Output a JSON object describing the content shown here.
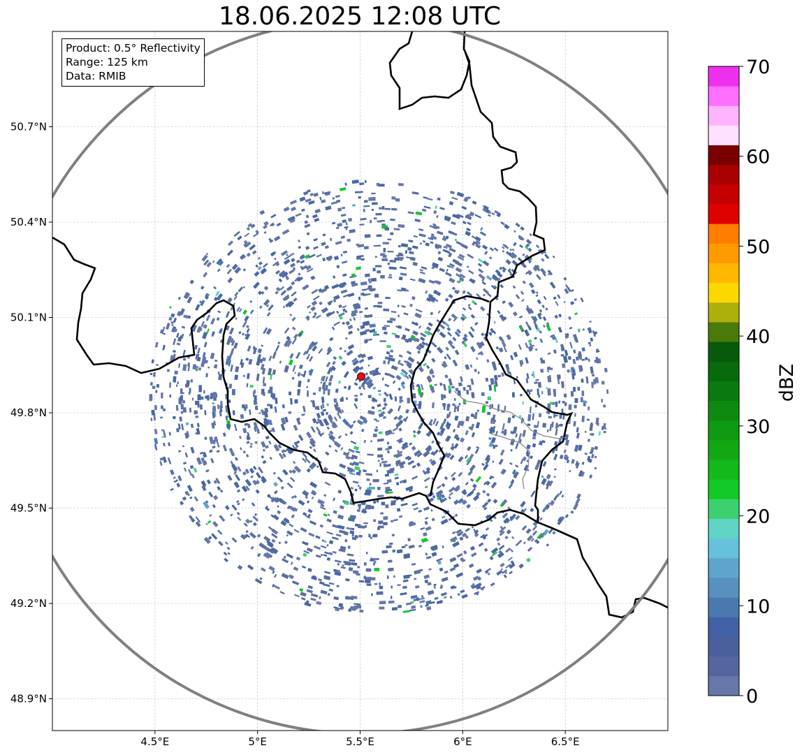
{
  "title": "18.06.2025 12:08 UTC",
  "info": {
    "product": "Product: 0.5° Reflectivity",
    "range": "Range: 125 km",
    "data": "Data: RMIB"
  },
  "axes": {
    "x_ticks": [
      "4.5°E",
      "5°E",
      "5.5°E",
      "6°E",
      "6.5°E"
    ],
    "x_values": [
      4.5,
      5.0,
      5.5,
      6.0,
      6.5
    ],
    "y_ticks": [
      "50.7°N",
      "50.4°N",
      "50.1°N",
      "49.8°N",
      "49.5°N",
      "49.2°N",
      "48.9°N"
    ],
    "y_values": [
      50.7,
      50.4,
      50.1,
      49.8,
      49.5,
      49.2,
      48.9
    ],
    "lon_range": [
      4.0,
      7.0
    ],
    "lat_range": [
      48.8,
      51.0
    ],
    "grid": true
  },
  "radar": {
    "site_lon": 5.505,
    "site_lat": 49.914,
    "range_km": 125,
    "site_color": "#dd1111",
    "range_ring_color": "#808080"
  },
  "colorbar": {
    "label": "dBZ",
    "tick_labels": [
      "0",
      "10",
      "20",
      "30",
      "40",
      "50",
      "60",
      "70"
    ],
    "min": 0,
    "max": 70,
    "colors": [
      "#6677aa",
      "#55669f",
      "#4a5f9e",
      "#4260a6",
      "#4a79b0",
      "#5890bf",
      "#5ea5cc",
      "#66c2dc",
      "#5fd4c4",
      "#3dd06e",
      "#13c928",
      "#13b91a",
      "#12a814",
      "#0f9a13",
      "#0e8a10",
      "#0a7a0e",
      "#086a0a",
      "#075a09",
      "#4a7a0a",
      "#aeb00a",
      "#fdd800",
      "#ffb800",
      "#ff9a00",
      "#ff7d00",
      "#e00000",
      "#c40000",
      "#a80000",
      "#7a0000",
      "#ffe0ff",
      "#ffb4ff",
      "#ff6eff",
      "#ee30ee"
    ]
  },
  "echo_colors": [
    "#5a6fa3",
    "#4a68a6",
    "#6677aa",
    "#4a79b0",
    "#5ea5cc",
    "#5fd4c4",
    "#3dd06e",
    "#13c928"
  ]
}
